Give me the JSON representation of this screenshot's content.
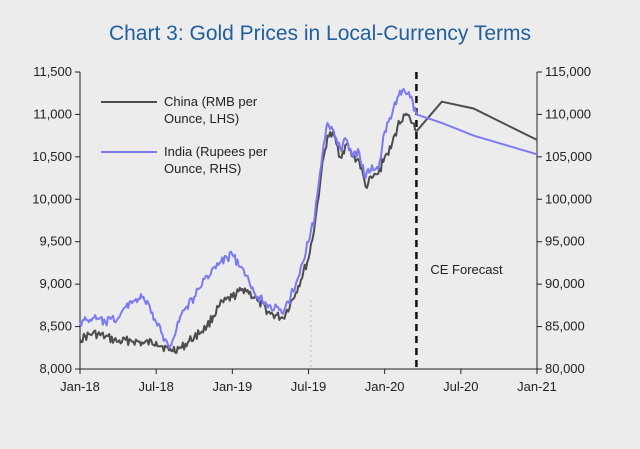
{
  "chart_data": {
    "type": "line",
    "title": "Chart 3: Gold Prices in Local-Currency Terms",
    "x_ticks": [
      "Jan-18",
      "Jul-18",
      "Jan-19",
      "Jul-19",
      "Jan-20",
      "Jul-20",
      "Jan-21"
    ],
    "y_left": {
      "range": [
        8000,
        11500
      ],
      "ticks": [
        8000,
        8500,
        9000,
        9500,
        10000,
        10500,
        11000,
        11500
      ],
      "tick_labels": [
        "8,000",
        "8,500",
        "9,000",
        "9,500",
        "10,000",
        "10,500",
        "11,000",
        "11,500"
      ]
    },
    "y_right": {
      "range": [
        80000,
        115000
      ],
      "ticks": [
        80000,
        85000,
        90000,
        95000,
        100000,
        105000,
        110000,
        115000
      ],
      "tick_labels": [
        "80,000",
        "85,000",
        "90,000",
        "95,000",
        "100,000",
        "105,000",
        "110,000",
        "115,000"
      ]
    },
    "forecast_label": "CE Forecast",
    "forecast_start_month": 26.5,
    "series": [
      {
        "name": "China (RMB per Ounce, LHS)",
        "legend_lines": [
          "China (RMB per",
          "Ounce, LHS)"
        ],
        "axis": "left",
        "color": "#4d4d4d",
        "x_months": [
          0,
          1,
          2,
          3,
          4,
          5,
          6,
          7,
          8,
          9,
          10,
          11,
          12,
          13,
          14,
          15,
          16,
          17,
          18,
          18.5,
          19,
          19.5,
          20,
          20.5,
          21,
          21.5,
          22,
          22.5,
          23,
          23.5,
          24,
          24.5,
          25,
          25.5,
          26,
          26.5
        ],
        "values": [
          8350,
          8420,
          8380,
          8320,
          8340,
          8300,
          8320,
          8220,
          8250,
          8380,
          8500,
          8750,
          8850,
          8950,
          8800,
          8650,
          8600,
          8900,
          9300,
          9700,
          10300,
          10750,
          10750,
          10500,
          10650,
          10500,
          10450,
          10150,
          10250,
          10300,
          10500,
          10600,
          10850,
          11000,
          10950,
          10800
        ]
      },
      {
        "name": "India (Rupees per Ounce, RHS)",
        "legend_lines": [
          "India (Rupees per",
          "Ounce, RHS)"
        ],
        "axis": "right",
        "color": "#7b7bf0",
        "x_months": [
          0,
          1,
          2,
          3,
          4,
          5,
          6,
          7,
          8,
          9,
          10,
          11,
          12,
          13,
          14,
          15,
          16,
          17,
          18,
          18.5,
          19,
          19.5,
          20,
          20.5,
          21,
          21.5,
          22,
          22.5,
          23,
          23.5,
          24,
          24.5,
          25,
          25.5,
          26,
          26.5
        ],
        "values": [
          85500,
          86000,
          85500,
          86000,
          88000,
          88500,
          85500,
          82500,
          86500,
          88500,
          91000,
          92500,
          93500,
          91000,
          88500,
          87500,
          86500,
          90000,
          95000,
          98000,
          104000,
          109000,
          108000,
          106000,
          107000,
          105000,
          105500,
          102500,
          104000,
          103500,
          108000,
          109500,
          112000,
          113000,
          112000,
          110000
        ]
      }
    ],
    "forecast": [
      {
        "series": "China (RMB per Ounce, LHS)",
        "x_months": [
          26.5,
          28.5,
          31,
          36
        ],
        "values": [
          10800,
          11150,
          11070,
          10700
        ]
      },
      {
        "series": "India (Rupees per Ounce, RHS)",
        "x_months": [
          26.5,
          28.5,
          31,
          36
        ],
        "values": [
          110000,
          109000,
          107500,
          105300
        ]
      }
    ]
  }
}
